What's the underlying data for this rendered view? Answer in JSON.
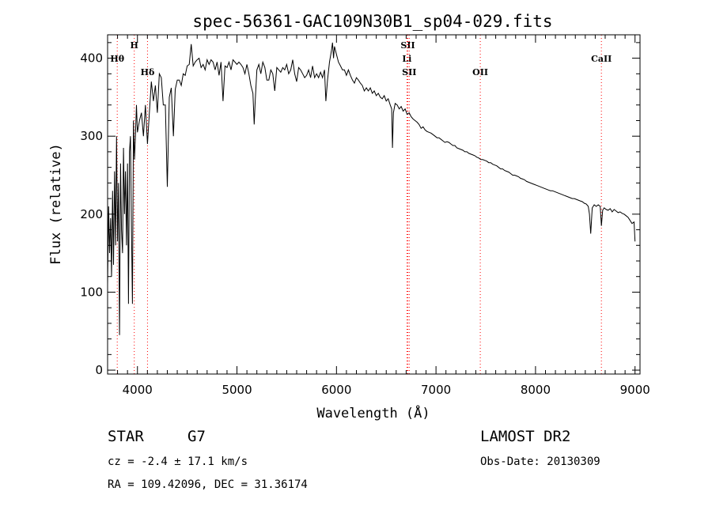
{
  "chart_data": {
    "type": "line",
    "title": "spec-56361-GAC109N30B1_sp04-029.fits",
    "xlabel": "Wavelength (Å)",
    "ylabel": "Flux (relative)",
    "xlim": [
      3700,
      9050
    ],
    "ylim": [
      -5,
      430
    ],
    "xticks": [
      4000,
      5000,
      6000,
      7000,
      8000,
      9000
    ],
    "yticks": [
      0,
      100,
      200,
      300,
      400
    ],
    "series": [
      {
        "points": [
          [
            3700,
            110
          ],
          [
            3710,
            210
          ],
          [
            3720,
            150
          ],
          [
            3730,
            195
          ],
          [
            3740,
            120
          ],
          [
            3750,
            230
          ],
          [
            3760,
            135
          ],
          [
            3770,
            255
          ],
          [
            3780,
            160
          ],
          [
            3790,
            300
          ],
          [
            3800,
            165
          ],
          [
            3810,
            240
          ],
          [
            3820,
            45
          ],
          [
            3830,
            265
          ],
          [
            3840,
            180
          ],
          [
            3850,
            150
          ],
          [
            3860,
            285
          ],
          [
            3870,
            200
          ],
          [
            3880,
            255
          ],
          [
            3890,
            160
          ],
          [
            3900,
            265
          ],
          [
            3910,
            85
          ],
          [
            3920,
            280
          ],
          [
            3930,
            300
          ],
          [
            3940,
            180
          ],
          [
            3950,
            85
          ],
          [
            3960,
            320
          ],
          [
            3970,
            270
          ],
          [
            3980,
            300
          ],
          [
            3990,
            340
          ],
          [
            4000,
            305
          ],
          [
            4020,
            320
          ],
          [
            4040,
            330
          ],
          [
            4060,
            300
          ],
          [
            4080,
            340
          ],
          [
            4101,
            290
          ],
          [
            4120,
            330
          ],
          [
            4140,
            370
          ],
          [
            4160,
            345
          ],
          [
            4180,
            365
          ],
          [
            4200,
            330
          ],
          [
            4220,
            380
          ],
          [
            4240,
            375
          ],
          [
            4260,
            340
          ],
          [
            4280,
            340
          ],
          [
            4300,
            235
          ],
          [
            4320,
            350
          ],
          [
            4340,
            362
          ],
          [
            4361,
            300
          ],
          [
            4380,
            360
          ],
          [
            4400,
            372
          ],
          [
            4420,
            372
          ],
          [
            4440,
            365
          ],
          [
            4460,
            380
          ],
          [
            4480,
            378
          ],
          [
            4500,
            390
          ],
          [
            4520,
            392
          ],
          [
            4540,
            418
          ],
          [
            4560,
            390
          ],
          [
            4580,
            395
          ],
          [
            4600,
            398
          ],
          [
            4620,
            400
          ],
          [
            4640,
            388
          ],
          [
            4660,
            392
          ],
          [
            4680,
            385
          ],
          [
            4700,
            398
          ],
          [
            4720,
            392
          ],
          [
            4740,
            398
          ],
          [
            4760,
            395
          ],
          [
            4780,
            385
          ],
          [
            4800,
            395
          ],
          [
            4820,
            378
          ],
          [
            4840,
            395
          ],
          [
            4860,
            345
          ],
          [
            4880,
            390
          ],
          [
            4900,
            388
          ],
          [
            4920,
            395
          ],
          [
            4940,
            385
          ],
          [
            4960,
            398
          ],
          [
            4980,
            395
          ],
          [
            5000,
            392
          ],
          [
            5020,
            395
          ],
          [
            5040,
            392
          ],
          [
            5060,
            388
          ],
          [
            5080,
            380
          ],
          [
            5100,
            392
          ],
          [
            5120,
            380
          ],
          [
            5140,
            365
          ],
          [
            5160,
            355
          ],
          [
            5173,
            315
          ],
          [
            5183,
            345
          ],
          [
            5200,
            385
          ],
          [
            5220,
            392
          ],
          [
            5240,
            380
          ],
          [
            5260,
            395
          ],
          [
            5280,
            388
          ],
          [
            5300,
            372
          ],
          [
            5320,
            372
          ],
          [
            5340,
            385
          ],
          [
            5360,
            380
          ],
          [
            5380,
            358
          ],
          [
            5400,
            388
          ],
          [
            5420,
            385
          ],
          [
            5440,
            382
          ],
          [
            5460,
            388
          ],
          [
            5480,
            385
          ],
          [
            5500,
            392
          ],
          [
            5520,
            380
          ],
          [
            5540,
            385
          ],
          [
            5560,
            398
          ],
          [
            5580,
            380
          ],
          [
            5600,
            370
          ],
          [
            5620,
            388
          ],
          [
            5640,
            385
          ],
          [
            5660,
            380
          ],
          [
            5680,
            375
          ],
          [
            5700,
            378
          ],
          [
            5720,
            385
          ],
          [
            5740,
            375
          ],
          [
            5760,
            390
          ],
          [
            5780,
            375
          ],
          [
            5800,
            380
          ],
          [
            5820,
            375
          ],
          [
            5840,
            382
          ],
          [
            5860,
            375
          ],
          [
            5880,
            385
          ],
          [
            5893,
            345
          ],
          [
            5910,
            372
          ],
          [
            5930,
            395
          ],
          [
            5950,
            410
          ],
          [
            5960,
            420
          ],
          [
            5970,
            400
          ],
          [
            5980,
            415
          ],
          [
            6000,
            405
          ],
          [
            6020,
            395
          ],
          [
            6040,
            390
          ],
          [
            6060,
            385
          ],
          [
            6080,
            385
          ],
          [
            6100,
            378
          ],
          [
            6120,
            385
          ],
          [
            6140,
            378
          ],
          [
            6160,
            372
          ],
          [
            6180,
            368
          ],
          [
            6200,
            375
          ],
          [
            6220,
            372
          ],
          [
            6240,
            368
          ],
          [
            6260,
            365
          ],
          [
            6280,
            358
          ],
          [
            6300,
            362
          ],
          [
            6320,
            358
          ],
          [
            6340,
            362
          ],
          [
            6360,
            355
          ],
          [
            6380,
            358
          ],
          [
            6400,
            352
          ],
          [
            6420,
            355
          ],
          [
            6440,
            350
          ],
          [
            6460,
            348
          ],
          [
            6480,
            352
          ],
          [
            6500,
            345
          ],
          [
            6520,
            348
          ],
          [
            6540,
            340
          ],
          [
            6555,
            335
          ],
          [
            6563,
            285
          ],
          [
            6572,
            330
          ],
          [
            6590,
            342
          ],
          [
            6610,
            340
          ],
          [
            6630,
            335
          ],
          [
            6650,
            338
          ],
          [
            6670,
            332
          ],
          [
            6690,
            335
          ],
          [
            6710,
            328
          ],
          [
            6730,
            330
          ],
          [
            6750,
            325
          ],
          [
            6770,
            322
          ],
          [
            6790,
            320
          ],
          [
            6810,
            318
          ],
          [
            6830,
            315
          ],
          [
            6850,
            310
          ],
          [
            6870,
            312
          ],
          [
            6890,
            308
          ],
          [
            6910,
            306
          ],
          [
            6930,
            305
          ],
          [
            6950,
            304
          ],
          [
            6970,
            302
          ],
          [
            6990,
            300
          ],
          [
            7010,
            298
          ],
          [
            7030,
            298
          ],
          [
            7050,
            296
          ],
          [
            7070,
            294
          ],
          [
            7090,
            292
          ],
          [
            7110,
            293
          ],
          [
            7130,
            292
          ],
          [
            7150,
            290
          ],
          [
            7170,
            288
          ],
          [
            7190,
            288
          ],
          [
            7210,
            285
          ],
          [
            7230,
            284
          ],
          [
            7250,
            283
          ],
          [
            7270,
            282
          ],
          [
            7290,
            280
          ],
          [
            7310,
            280
          ],
          [
            7330,
            278
          ],
          [
            7350,
            277
          ],
          [
            7370,
            276
          ],
          [
            7390,
            275
          ],
          [
            7410,
            273
          ],
          [
            7430,
            272
          ],
          [
            7450,
            270
          ],
          [
            7470,
            270
          ],
          [
            7490,
            269
          ],
          [
            7510,
            268
          ],
          [
            7530,
            266
          ],
          [
            7550,
            266
          ],
          [
            7570,
            264
          ],
          [
            7590,
            263
          ],
          [
            7610,
            262
          ],
          [
            7630,
            260
          ],
          [
            7650,
            258
          ],
          [
            7670,
            258
          ],
          [
            7690,
            256
          ],
          [
            7710,
            255
          ],
          [
            7730,
            254
          ],
          [
            7750,
            252
          ],
          [
            7770,
            250
          ],
          [
            7790,
            250
          ],
          [
            7810,
            249
          ],
          [
            7830,
            248
          ],
          [
            7850,
            246
          ],
          [
            7870,
            245
          ],
          [
            7890,
            244
          ],
          [
            7910,
            242
          ],
          [
            7930,
            241
          ],
          [
            7950,
            240
          ],
          [
            7970,
            239
          ],
          [
            7990,
            238
          ],
          [
            8010,
            237
          ],
          [
            8030,
            236
          ],
          [
            8050,
            235
          ],
          [
            8070,
            234
          ],
          [
            8090,
            233
          ],
          [
            8110,
            232
          ],
          [
            8130,
            231
          ],
          [
            8150,
            230
          ],
          [
            8170,
            230
          ],
          [
            8190,
            229
          ],
          [
            8210,
            228
          ],
          [
            8230,
            227
          ],
          [
            8250,
            226
          ],
          [
            8270,
            225
          ],
          [
            8290,
            224
          ],
          [
            8310,
            223
          ],
          [
            8330,
            222
          ],
          [
            8350,
            221
          ],
          [
            8370,
            220
          ],
          [
            8390,
            220
          ],
          [
            8410,
            219
          ],
          [
            8430,
            218
          ],
          [
            8450,
            217
          ],
          [
            8470,
            216
          ],
          [
            8490,
            214
          ],
          [
            8510,
            213
          ],
          [
            8530,
            210
          ],
          [
            8542,
            200
          ],
          [
            8555,
            175
          ],
          [
            8570,
            208
          ],
          [
            8590,
            212
          ],
          [
            8610,
            210
          ],
          [
            8630,
            212
          ],
          [
            8650,
            210
          ],
          [
            8662,
            185
          ],
          [
            8675,
            205
          ],
          [
            8690,
            208
          ],
          [
            8710,
            206
          ],
          [
            8730,
            205
          ],
          [
            8750,
            207
          ],
          [
            8770,
            203
          ],
          [
            8790,
            206
          ],
          [
            8810,
            204
          ],
          [
            8830,
            202
          ],
          [
            8850,
            203
          ],
          [
            8870,
            201
          ],
          [
            8890,
            200
          ],
          [
            8910,
            198
          ],
          [
            8930,
            196
          ],
          [
            8950,
            192
          ],
          [
            8970,
            188
          ],
          [
            8990,
            190
          ],
          [
            9000,
            165
          ]
        ]
      }
    ],
    "lines": [
      {
        "label": "Hθ",
        "wave": 3797,
        "color": "#ff0000",
        "label_rows": [
          0
        ]
      },
      {
        "label": "H",
        "wave": 3968,
        "color": "#ff0000",
        "label_rows": [
          -1
        ]
      },
      {
        "label": "Hδ",
        "wave": 4101,
        "color": "#ff0000",
        "label_rows": [
          1
        ]
      },
      {
        "label": "SII",
        "wave": 6717,
        "color": "#ff0000",
        "label_rows": [
          -1
        ]
      },
      {
        "label": "Li",
        "wave": 6708,
        "color": "#ff0000",
        "label_rows": [
          0
        ]
      },
      {
        "label": "SII",
        "wave": 6731,
        "color": "#ff0000",
        "label_rows": [
          1
        ]
      },
      {
        "label": "OII",
        "wave": 7445,
        "color": "#ff0000",
        "label_rows": [
          1
        ]
      },
      {
        "label": "CaII",
        "wave": 8662,
        "color": "#ff0000",
        "label_rows": [
          0
        ]
      }
    ]
  },
  "info": {
    "object_class": "STAR",
    "subclass": "G7",
    "survey": "LAMOST DR2",
    "cz": "cz = -2.4 ± 17.1 km/s",
    "obs_date": "Obs-Date: 20130309",
    "coords": "RA = 109.42096, DEC =  31.36174"
  }
}
